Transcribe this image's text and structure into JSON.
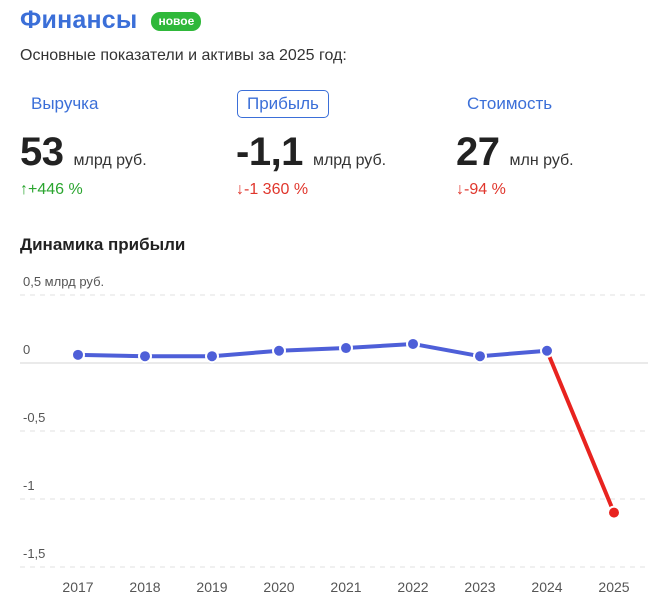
{
  "header": {
    "title": "Финансы",
    "badge": "новое",
    "subtitle": "Основные показатели и активы за 2025 год:"
  },
  "metrics": [
    {
      "tab": "Выручка",
      "value": "53",
      "unit": "млрд руб.",
      "change": "↑+446 %",
      "direction": "up",
      "active": false
    },
    {
      "tab": "Прибыль",
      "value": "-1,1",
      "unit": "млрд руб.",
      "change": "↓-1 360 %",
      "direction": "down",
      "active": true
    },
    {
      "tab": "Стоимость",
      "value": "27",
      "unit": "млн руб.",
      "change": "↓-94 %",
      "direction": "down",
      "active": false
    }
  ],
  "colors": {
    "accent": "#3b6fd8",
    "line": "#4e5fd8",
    "negative": "#e8231f",
    "badge": "#2fb83a"
  },
  "chart_data": {
    "type": "line",
    "title": "Динамика прибыли",
    "x": [
      "2017",
      "2018",
      "2019",
      "2020",
      "2021",
      "2022",
      "2023",
      "2024",
      "2025"
    ],
    "series": [
      {
        "values": [
          0.06,
          0.05,
          0.05,
          0.09,
          0.11,
          0.14,
          0.05,
          0.09,
          -1.1
        ]
      }
    ],
    "y_ticks": [
      {
        "value": 0.5,
        "label": "0,5 млрд руб."
      },
      {
        "value": 0,
        "label": "0"
      },
      {
        "value": -0.5,
        "label": "-0,5"
      },
      {
        "value": -1,
        "label": "-1"
      },
      {
        "value": -1.5,
        "label": "-1,5"
      }
    ],
    "ylim": [
      -1.5,
      0.5
    ],
    "grid": true
  }
}
